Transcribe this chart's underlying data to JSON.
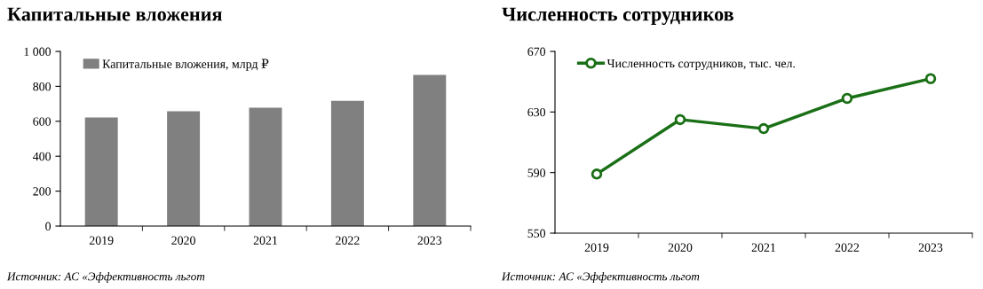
{
  "chart_data": [
    {
      "type": "bar",
      "title": "Капитальные вложения",
      "categories": [
        "2019",
        "2020",
        "2021",
        "2022",
        "2023"
      ],
      "series": [
        {
          "name": "Капитальные вложения, млрд ₽",
          "color": "#808080",
          "values": [
            622,
            657,
            678,
            717,
            865
          ]
        }
      ],
      "ylim": [
        0,
        1000
      ],
      "yticks": [
        0,
        200,
        400,
        600,
        800,
        {
          "value": 1000,
          "label": "1 000"
        }
      ],
      "grid": false,
      "legend": "top left",
      "annotations": [
        "Источник: АС «Эффективность льгот"
      ]
    },
    {
      "type": "line",
      "title": "Численность сотрудников",
      "categories": [
        "2019",
        "2020",
        "2021",
        "2022",
        "2023"
      ],
      "series": [
        {
          "name": "Численность сотрудников, тыс. чел.",
          "color": "#1a7016",
          "values": [
            589,
            625,
            619,
            639,
            652
          ]
        }
      ],
      "ylim": [
        550,
        670
      ],
      "yticks": [
        550,
        590,
        630,
        670
      ],
      "grid": false,
      "legend": "top left",
      "marker": "circle",
      "line_style": "solid",
      "annotations": [
        "Источник: АС «Эффективность льгот"
      ]
    }
  ]
}
